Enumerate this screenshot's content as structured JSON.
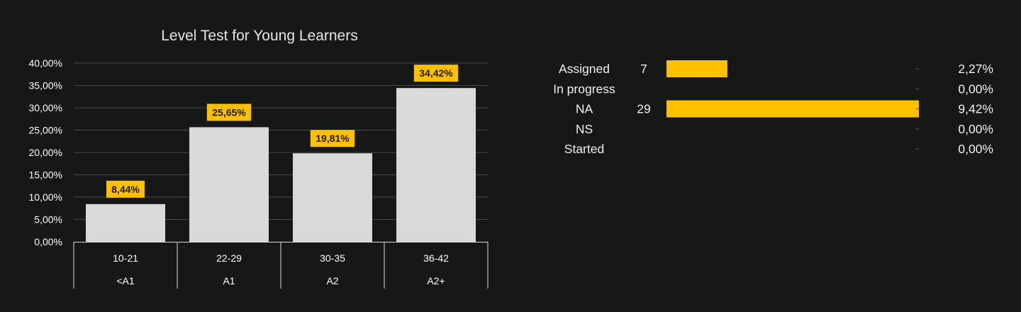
{
  "chart_data": [
    {
      "type": "bar",
      "title": "Level Test for Young Learners",
      "categories": [
        {
          "score": "10-21",
          "level": "<A1"
        },
        {
          "score": "22-29",
          "level": "A1"
        },
        {
          "score": "30-35",
          "level": "A2"
        },
        {
          "score": "36-42",
          "level": "A2+"
        }
      ],
      "values": [
        8.44,
        25.65,
        19.81,
        34.42
      ],
      "data_labels": [
        "8,44%",
        "25,65%",
        "19,81%",
        "34,42%"
      ],
      "ylim": [
        0,
        40
      ],
      "yticks": [
        "0,00%",
        "5,00%",
        "10,00%",
        "15,00%",
        "20,00%",
        "25,00%",
        "30,00%",
        "35,00%",
        "40,00%"
      ],
      "grid": true,
      "colors": {
        "bar": "#d9d9d9",
        "label_bg": "#ffc000",
        "label_text": "#1a1a1a",
        "gridline": "#4a4a4a",
        "axis": "#d9d9d9"
      }
    },
    {
      "type": "bar",
      "orientation": "horizontal",
      "rows": [
        {
          "label": "Assigned",
          "count": "7",
          "percent": 2.27,
          "percent_label": "2,27%"
        },
        {
          "label": "In progress",
          "count": "",
          "percent": 0.0,
          "percent_label": "0,00%"
        },
        {
          "label": "NA",
          "count": "29",
          "percent": 9.42,
          "percent_label": "9,42%"
        },
        {
          "label": "NS",
          "count": "",
          "percent": 0.0,
          "percent_label": "0,00%"
        },
        {
          "label": "Started",
          "count": "",
          "percent": 0.0,
          "percent_label": "0,00%"
        }
      ],
      "xlim": [
        0,
        9.42
      ],
      "colors": {
        "bar": "#ffc000",
        "tick": "#555555"
      }
    }
  ]
}
